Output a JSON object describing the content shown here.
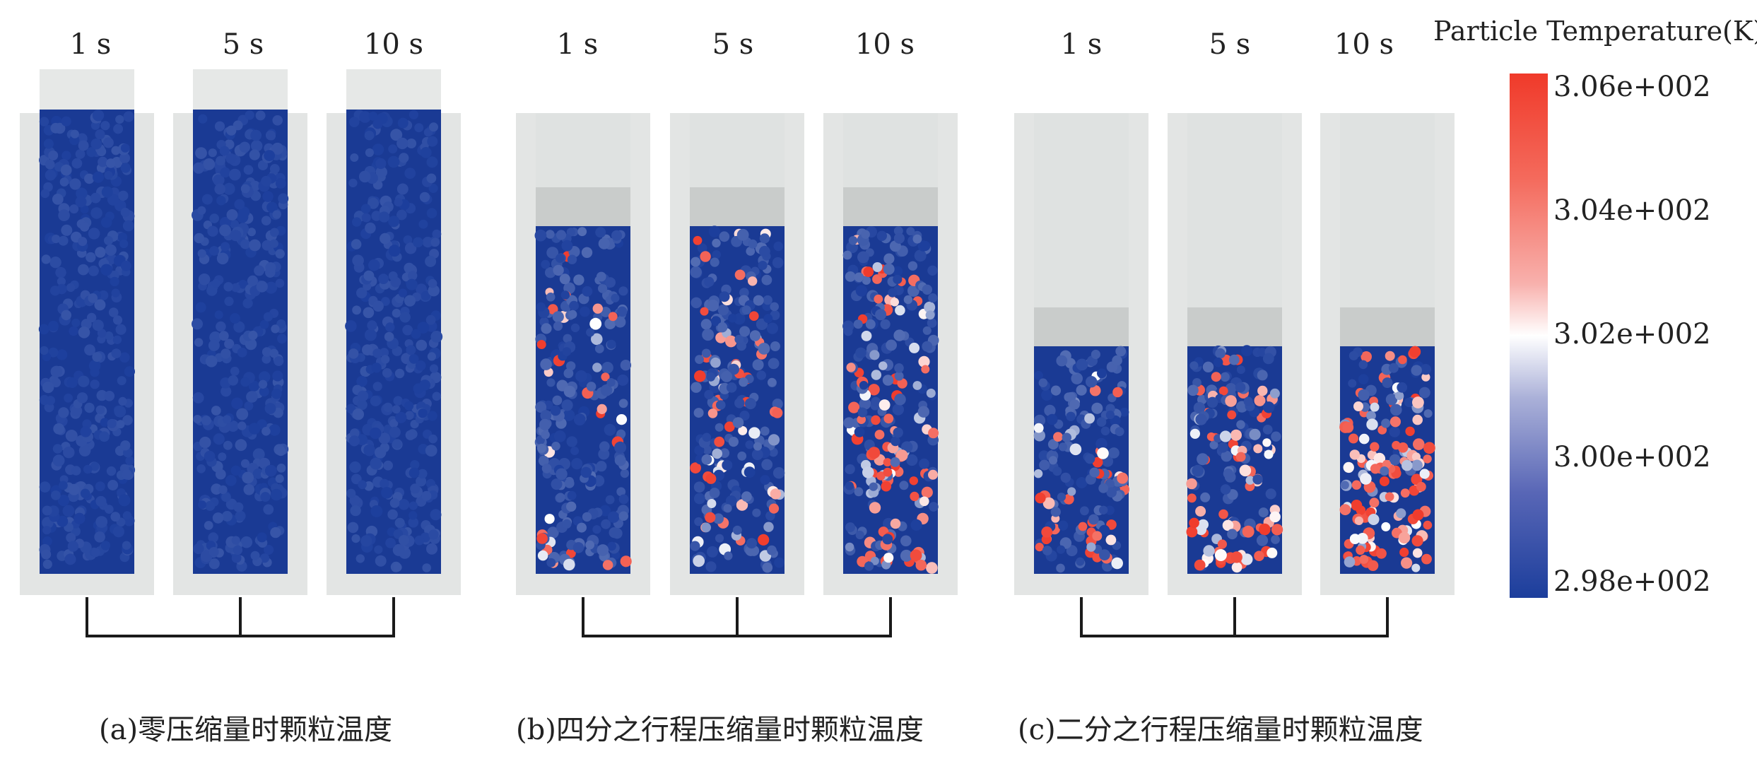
{
  "colors": {
    "cold": "#1c3e9c",
    "mid": "#ffffff",
    "hot": "#f03a2a",
    "tube": "#e3e5e4",
    "bracket": "#1a1a1a"
  },
  "legend": {
    "title": "Particle Temperature(K)",
    "ticks": [
      "3.06e+002",
      "3.04e+002",
      "3.02e+002",
      "3.00e+002",
      "2.98e+002"
    ]
  },
  "groups": [
    {
      "caption": "(a)零压缩量时颗粒温度",
      "columns": [
        {
          "label": "1 s",
          "heat": 0.0
        },
        {
          "label": "5 s",
          "heat": 0.0
        },
        {
          "label": "10 s",
          "heat": 0.0
        }
      ]
    },
    {
      "caption": "(b)四分之行程压缩量时颗粒温度",
      "columns": [
        {
          "label": "1 s",
          "heat": 0.12
        },
        {
          "label": "5 s",
          "heat": 0.32
        },
        {
          "label": "10 s",
          "heat": 0.48
        }
      ]
    },
    {
      "caption": "(c)二分之行程压缩量时颗粒温度",
      "columns": [
        {
          "label": "1 s",
          "heat": 0.25
        },
        {
          "label": "5 s",
          "heat": 0.55
        },
        {
          "label": "10 s",
          "heat": 0.85
        }
      ]
    }
  ]
}
